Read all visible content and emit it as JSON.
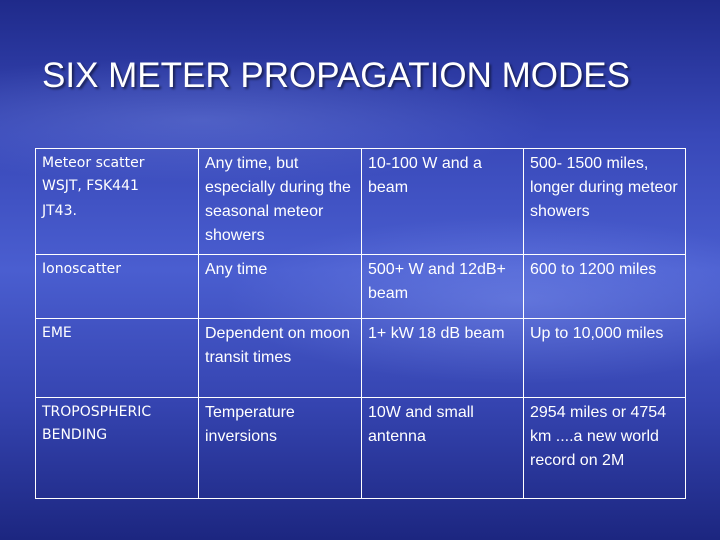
{
  "header": {
    "title": "SIX METER PROPAGATION MODES"
  },
  "table": {
    "rows": [
      [
        [
          "Meteor scatter",
          "WSJT,  FSK441",
          "JT43."
        ],
        [
          "Any time, but especially during the seasonal meteor showers"
        ],
        [
          "10-100 W and a beam"
        ],
        [
          "500- 1500 miles, longer during meteor showers"
        ]
      ],
      [
        [
          "Ionoscatter"
        ],
        [
          "Any time"
        ],
        [
          "500+ W and 12dB+ beam"
        ],
        [
          "600 to 1200 miles"
        ]
      ],
      [
        [
          "EME"
        ],
        [
          "Dependent on moon transit times"
        ],
        [
          "1+ kW 18 dB beam"
        ],
        [
          "Up to 10,000 miles"
        ]
      ],
      [
        [
          "TROPOSPHERIC",
          "BENDING"
        ],
        [
          "Temperature",
          "inversions"
        ],
        [
          "10W and small antenna"
        ],
        [
          "2954 miles or 4754 km ....a new world record on 2M"
        ]
      ]
    ]
  }
}
